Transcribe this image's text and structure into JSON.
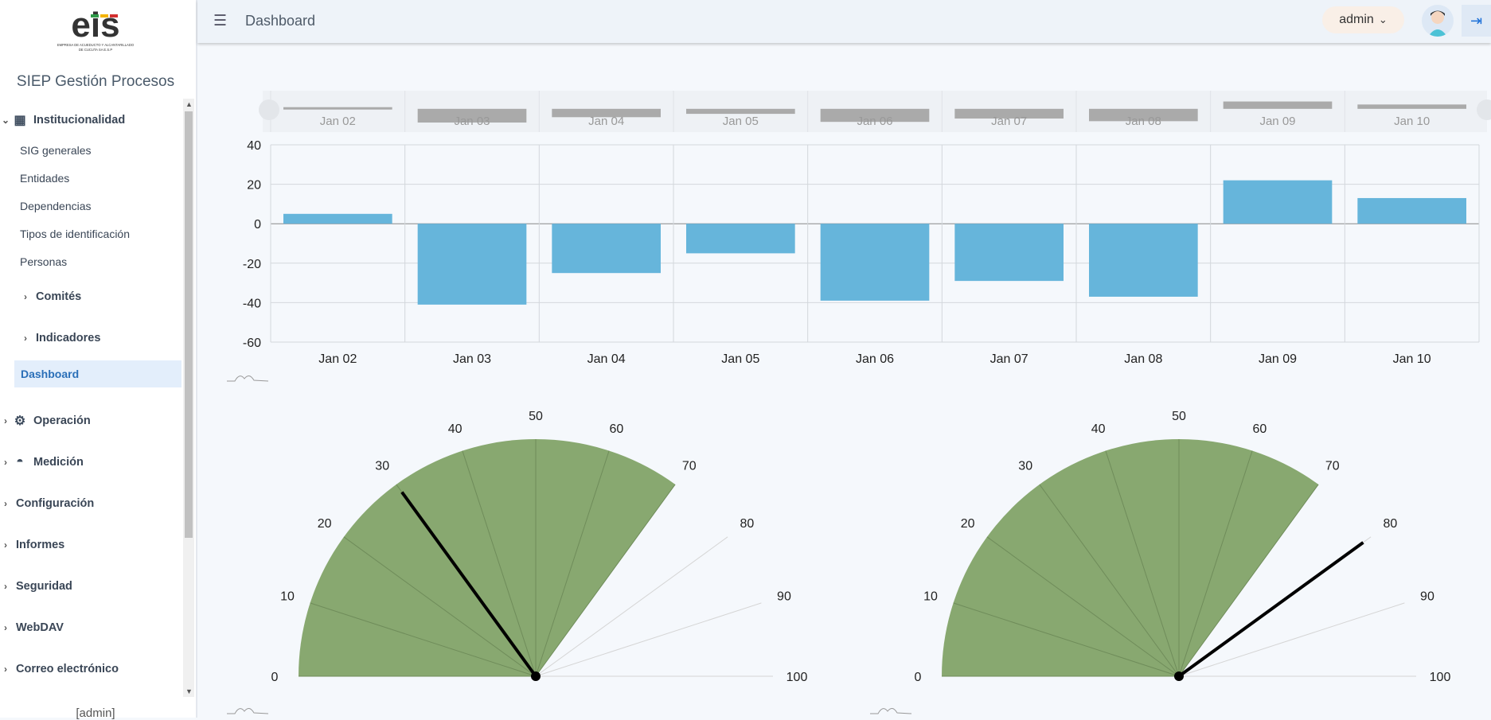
{
  "app": {
    "title": "SIEP Gestión Procesos",
    "logo_text": "eis",
    "logo_caption_line1": "EMPRESA DE ACUEDUCTO Y ALCANTARILLADO",
    "logo_caption_line2": "DE CUCUTA SA E.S.P"
  },
  "header": {
    "page_title": "Dashboard",
    "user_label": "admin",
    "menu_icon": "hamburger-icon",
    "logout_icon": "logout-icon"
  },
  "sidebar": {
    "items": [
      {
        "label": "Institucionalidad",
        "kind": "section",
        "expanded": true,
        "icon": "building-icon"
      },
      {
        "label": "SIG generales",
        "kind": "sub"
      },
      {
        "label": "Entidades",
        "kind": "sub"
      },
      {
        "label": "Dependencias",
        "kind": "sub"
      },
      {
        "label": "Tipos de identificación",
        "kind": "sub"
      },
      {
        "label": "Personas",
        "kind": "sub"
      },
      {
        "label": "Comités",
        "kind": "subgroup"
      },
      {
        "label": "Indicadores",
        "kind": "subgroup"
      },
      {
        "label": "Dashboard",
        "kind": "sub",
        "active": true
      },
      {
        "label": "Operación",
        "kind": "section",
        "icon": "gears-icon"
      },
      {
        "label": "Medición",
        "kind": "section",
        "icon": "gauge-icon"
      },
      {
        "label": "Configuración",
        "kind": "section"
      },
      {
        "label": "Informes",
        "kind": "section"
      },
      {
        "label": "Seguridad",
        "kind": "section"
      },
      {
        "label": "WebDAV",
        "kind": "section"
      },
      {
        "label": "Correo electrónico",
        "kind": "section"
      }
    ],
    "footer_user": "[admin]"
  },
  "chart_data": [
    {
      "type": "bar",
      "categories": [
        "Jan 02",
        "Jan 03",
        "Jan 04",
        "Jan 05",
        "Jan 06",
        "Jan 07",
        "Jan 08",
        "Jan 09",
        "Jan 10"
      ],
      "values": [
        5,
        -41,
        -25,
        -15,
        -39,
        -29,
        -37,
        22,
        13
      ],
      "ylim": [
        -60,
        40
      ],
      "yticks": [
        40,
        20,
        0,
        -20,
        -40,
        -60
      ],
      "grid": true,
      "bar_color": "#66b5db",
      "navigator": true
    },
    {
      "type": "gauge",
      "min": 0,
      "max": 100,
      "ticks": [
        0,
        10,
        20,
        30,
        40,
        50,
        60,
        70,
        80,
        90,
        100
      ],
      "band": [
        0,
        70
      ],
      "band_color": "#88a870",
      "value": 30
    },
    {
      "type": "gauge",
      "min": 0,
      "max": 100,
      "ticks": [
        0,
        10,
        20,
        30,
        40,
        50,
        60,
        70,
        80,
        90,
        100
      ],
      "band": [
        0,
        70
      ],
      "band_color": "#88a870",
      "value": 80
    }
  ]
}
